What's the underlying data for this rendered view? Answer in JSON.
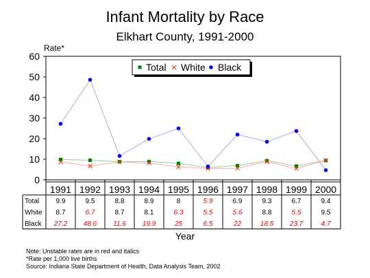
{
  "chart_data": {
    "type": "line",
    "title": "Infant Mortality by Race",
    "subtitle": "Elkhart County, 1991-2000",
    "ylabel": "Rate*",
    "xlabel": "Year",
    "ylim": [
      0,
      60
    ],
    "yticks": [
      0,
      10,
      20,
      30,
      40,
      50,
      60
    ],
    "grid": false,
    "legend_position": "top",
    "categories": [
      "1991",
      "1992",
      "1993",
      "1994",
      "1995",
      "1996",
      "1997",
      "1998",
      "1999",
      "2000"
    ],
    "series": [
      {
        "name": "Total",
        "values": [
          9.9,
          9.5,
          8.8,
          8.9,
          8,
          5.9,
          6.9,
          9.3,
          6.7,
          9.4
        ],
        "labels": [
          "9.9",
          "9.5",
          "8.8",
          "8.9",
          "8",
          "5.9",
          "6.9",
          "9.3",
          "6.7",
          "9.4"
        ],
        "unstable": [
          false,
          false,
          false,
          false,
          false,
          true,
          false,
          false,
          false,
          false
        ],
        "color": "#008000",
        "line_color": "#99cc99",
        "marker": "square"
      },
      {
        "name": "White",
        "values": [
          8.7,
          6.7,
          8.7,
          8.1,
          6.3,
          5.5,
          5.6,
          8.8,
          5.5,
          9.5
        ],
        "labels": [
          "8.7",
          "6.7",
          "8.7",
          "8.1",
          "6.3",
          "5.5",
          "5.6",
          "8.8",
          "5.5",
          "9.5"
        ],
        "unstable": [
          false,
          true,
          false,
          false,
          true,
          true,
          true,
          false,
          true,
          false
        ],
        "color": "#ff3300",
        "line_color": "#ffaaaa",
        "marker": "x"
      },
      {
        "name": "Black",
        "values": [
          27.2,
          48.6,
          11.6,
          19.9,
          25,
          6.5,
          22,
          18.5,
          23.7,
          4.7
        ],
        "labels": [
          "27.2",
          "48.6",
          "11.6",
          "19.9",
          "25",
          "6.5",
          "22",
          "18.5",
          "23.7",
          "4.7"
        ],
        "unstable": [
          true,
          true,
          true,
          true,
          true,
          true,
          true,
          true,
          true,
          true
        ],
        "color": "#0000ff",
        "line_color": "#aaaaee",
        "marker": "circle"
      }
    ],
    "unstable_color": "#ff0000",
    "notes": [
      "Note:  Unstable rates are in red and italics",
      "*Rate per 1,000 live births",
      "Source:  Indiana State Department of Health, Data Analysis Team, 2002"
    ]
  }
}
